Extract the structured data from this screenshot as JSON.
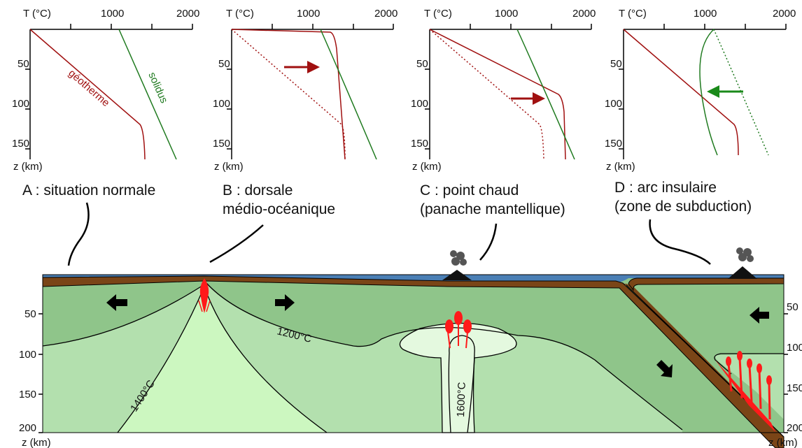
{
  "axes": {
    "temp_label": "T (°C)",
    "temp_ticks": [
      "1000",
      "2000"
    ],
    "depth_label": "z (km)",
    "depth_ticks_small": [
      "50",
      "100",
      "150"
    ],
    "depth_ticks_big": [
      "50",
      "100",
      "150",
      "200"
    ]
  },
  "curves": {
    "geotherm": "géotherme",
    "solidus": "solidus"
  },
  "panels": {
    "a": {
      "title_line1": "A : situation normale",
      "title_line2": ""
    },
    "b": {
      "title_line1": "B : dorsale",
      "title_line2": "médio-océanique"
    },
    "c": {
      "title_line1": "C : point chaud",
      "title_line2": "(panache mantellique)"
    },
    "d": {
      "title_line1": "D : arc insulaire",
      "title_line2": "(zone de subduction)"
    }
  },
  "isotherms": {
    "t1200": "1200°C",
    "t1400": "1400°C",
    "t1600": "1600°C"
  },
  "colors": {
    "geotherm": "#a01010",
    "solidus": "#1f7a1f",
    "ocean": "#4a7fb5",
    "crust": "#7a4517",
    "mantle_dark": "#8fc58a",
    "mantle_mid": "#b3e0ae",
    "mantle_light": "#ccf7c0",
    "plume": "#e4f9df",
    "magma": "#ff1a1a",
    "arrow_green": "#1a8a1a"
  }
}
